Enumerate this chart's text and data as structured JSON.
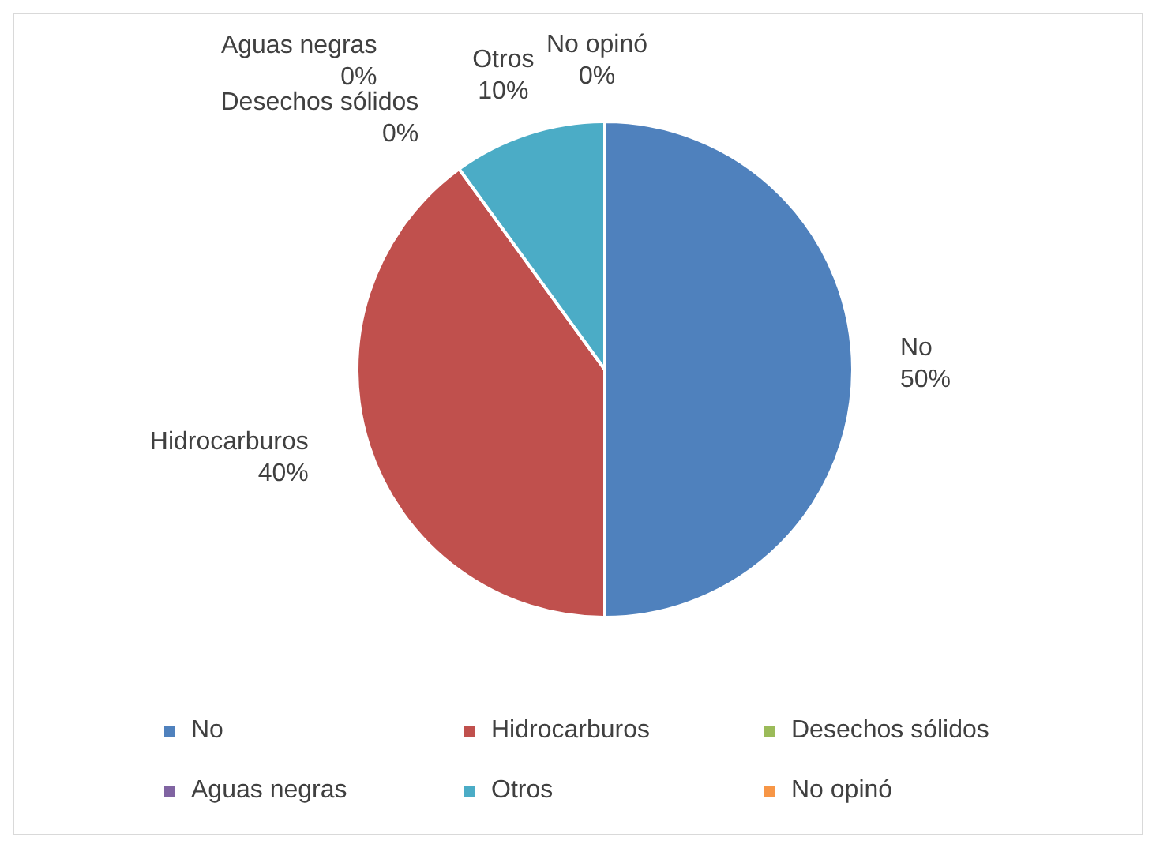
{
  "chart_data": {
    "type": "pie",
    "categories": [
      "No",
      "Hidrocarburos",
      "Desechos sólidos",
      "Aguas negras",
      "Otros",
      "No opinó"
    ],
    "values": [
      50,
      40,
      0,
      0,
      10,
      0
    ],
    "colors": [
      "#4f81bd",
      "#c0504d",
      "#9bbb59",
      "#8064a2",
      "#4bacc6",
      "#f79646"
    ],
    "value_labels": [
      "50%",
      "40%",
      "0%",
      "0%",
      "10%",
      "0%"
    ],
    "legend": "bottom"
  }
}
